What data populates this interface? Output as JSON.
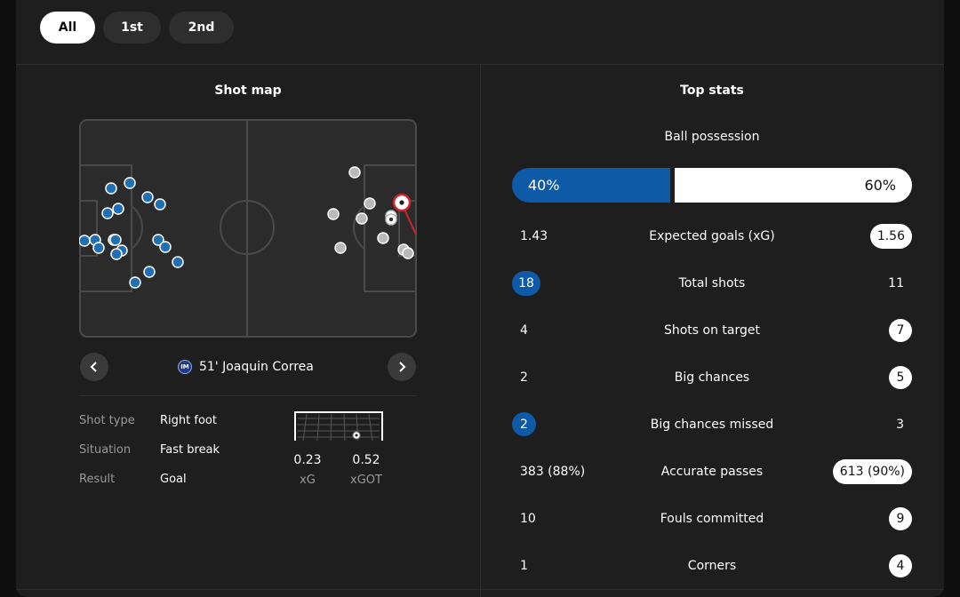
{
  "tabs": [
    {
      "label": "All",
      "active": true
    },
    {
      "label": "1st",
      "active": false
    },
    {
      "label": "2nd",
      "active": false
    }
  ],
  "shot_map": {
    "title": "Shot map",
    "player_label": "51' Joaquin Correa",
    "details": [
      {
        "key": "Shot type",
        "value": "Right foot"
      },
      {
        "key": "Situation",
        "value": "Fast break"
      },
      {
        "key": "Result",
        "value": "Goal"
      }
    ],
    "xg": {
      "value": "0.23",
      "label": "xG"
    },
    "xgot": {
      "value": "0.52",
      "label": "xGOT"
    },
    "colors": {
      "home": "#1f6fb5",
      "away": "#b9b9b9",
      "highlight": "#d6202a"
    }
  },
  "top_stats": {
    "title": "Top stats",
    "possession": {
      "label": "Ball possession",
      "left": "40%",
      "right": "60%",
      "left_fraction": 0.4
    },
    "rows": [
      {
        "label": "Expected goals (xG)",
        "left": "1.43",
        "right": "1.56",
        "highlight": "right"
      },
      {
        "label": "Total shots",
        "left": "18",
        "right": "11",
        "highlight": "left"
      },
      {
        "label": "Shots on target",
        "left": "4",
        "right": "7",
        "highlight": "right"
      },
      {
        "label": "Big chances",
        "left": "2",
        "right": "5",
        "highlight": "right"
      },
      {
        "label": "Big chances missed",
        "left": "2",
        "right": "3",
        "highlight": "left"
      },
      {
        "label": "Accurate passes",
        "left": "383 (88%)",
        "right": "613 (90%)",
        "highlight": "right"
      },
      {
        "label": "Fouls committed",
        "left": "10",
        "right": "9",
        "highlight": "right"
      },
      {
        "label": "Corners",
        "left": "1",
        "right": "4",
        "highlight": "right"
      }
    ]
  }
}
